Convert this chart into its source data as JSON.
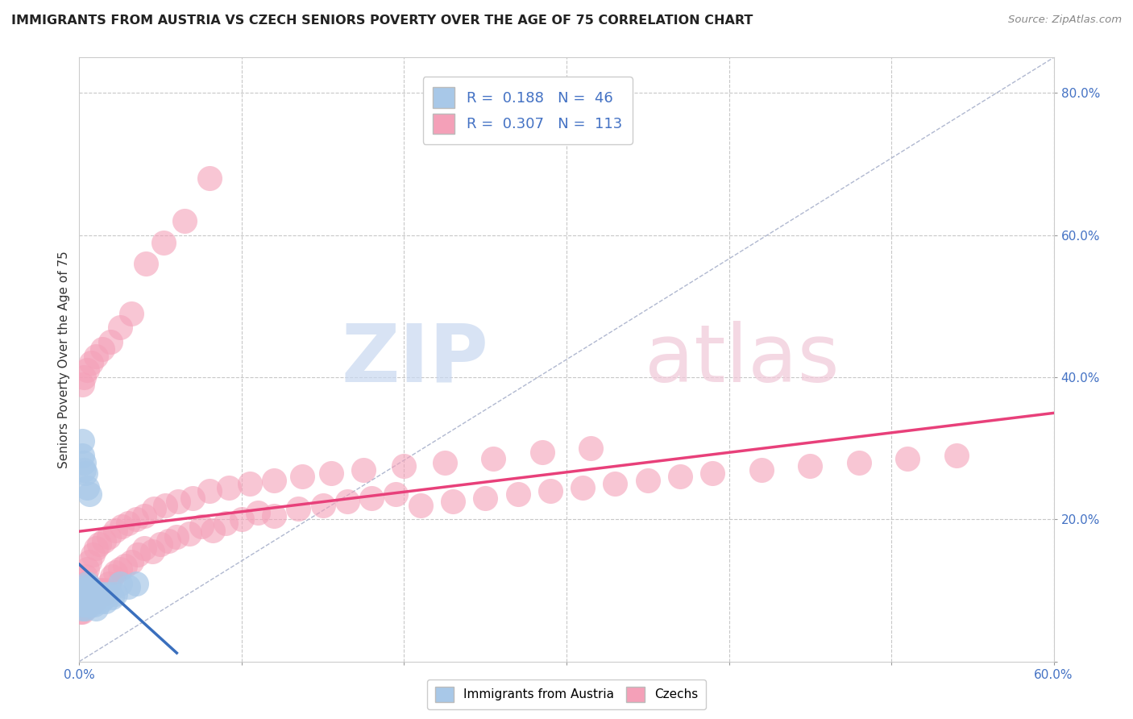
{
  "title": "IMMIGRANTS FROM AUSTRIA VS CZECH SENIORS POVERTY OVER THE AGE OF 75 CORRELATION CHART",
  "source": "Source: ZipAtlas.com",
  "ylabel": "Seniors Poverty Over the Age of 75",
  "xlim": [
    0.0,
    0.6
  ],
  "ylim": [
    0.0,
    0.85
  ],
  "austria_R": 0.188,
  "austria_N": 46,
  "czech_R": 0.307,
  "czech_N": 113,
  "austria_color": "#a8c8e8",
  "czech_color": "#f4a0b8",
  "austria_line_color": "#3a6fbd",
  "czech_line_color": "#e8407a",
  "bg_color": "#ffffff",
  "grid_color": "#c8c8c8",
  "legend_labels": [
    "Immigrants from Austria",
    "Czechs"
  ],
  "austria_x": [
    0.001,
    0.002,
    0.002,
    0.002,
    0.003,
    0.003,
    0.003,
    0.004,
    0.004,
    0.004,
    0.004,
    0.005,
    0.005,
    0.005,
    0.005,
    0.006,
    0.006,
    0.006,
    0.007,
    0.007,
    0.007,
    0.008,
    0.008,
    0.009,
    0.009,
    0.01,
    0.01,
    0.011,
    0.012,
    0.013,
    0.014,
    0.015,
    0.016,
    0.018,
    0.02,
    0.022,
    0.025,
    0.03,
    0.035,
    0.002,
    0.002,
    0.003,
    0.003,
    0.004,
    0.005,
    0.006
  ],
  "austria_y": [
    0.095,
    0.085,
    0.08,
    0.075,
    0.1,
    0.09,
    0.08,
    0.105,
    0.095,
    0.085,
    0.075,
    0.11,
    0.1,
    0.09,
    0.08,
    0.105,
    0.095,
    0.085,
    0.1,
    0.09,
    0.08,
    0.095,
    0.085,
    0.09,
    0.08,
    0.085,
    0.075,
    0.095,
    0.09,
    0.085,
    0.095,
    0.09,
    0.085,
    0.095,
    0.09,
    0.095,
    0.11,
    0.105,
    0.11,
    0.31,
    0.29,
    0.28,
    0.27,
    0.265,
    0.245,
    0.235
  ],
  "czech_x": [
    0.001,
    0.001,
    0.002,
    0.002,
    0.002,
    0.003,
    0.003,
    0.003,
    0.004,
    0.004,
    0.004,
    0.005,
    0.005,
    0.005,
    0.006,
    0.006,
    0.006,
    0.007,
    0.007,
    0.008,
    0.008,
    0.009,
    0.009,
    0.01,
    0.01,
    0.011,
    0.012,
    0.013,
    0.014,
    0.015,
    0.016,
    0.018,
    0.02,
    0.022,
    0.025,
    0.028,
    0.032,
    0.036,
    0.04,
    0.045,
    0.05,
    0.055,
    0.06,
    0.068,
    0.075,
    0.082,
    0.09,
    0.1,
    0.11,
    0.12,
    0.135,
    0.15,
    0.165,
    0.18,
    0.195,
    0.21,
    0.23,
    0.25,
    0.27,
    0.29,
    0.31,
    0.33,
    0.35,
    0.37,
    0.39,
    0.42,
    0.45,
    0.48,
    0.51,
    0.54,
    0.003,
    0.004,
    0.005,
    0.006,
    0.008,
    0.01,
    0.012,
    0.015,
    0.018,
    0.022,
    0.026,
    0.03,
    0.035,
    0.04,
    0.046,
    0.053,
    0.061,
    0.07,
    0.08,
    0.092,
    0.105,
    0.12,
    0.137,
    0.155,
    0.175,
    0.2,
    0.225,
    0.255,
    0.285,
    0.315,
    0.002,
    0.003,
    0.005,
    0.007,
    0.01,
    0.014,
    0.019,
    0.025,
    0.032,
    0.041,
    0.052,
    0.065,
    0.08
  ],
  "czech_y": [
    0.08,
    0.07,
    0.09,
    0.08,
    0.07,
    0.095,
    0.085,
    0.075,
    0.1,
    0.09,
    0.08,
    0.105,
    0.095,
    0.085,
    0.1,
    0.09,
    0.08,
    0.095,
    0.085,
    0.1,
    0.09,
    0.095,
    0.085,
    0.1,
    0.09,
    0.095,
    0.1,
    0.095,
    0.1,
    0.095,
    0.1,
    0.11,
    0.12,
    0.125,
    0.13,
    0.135,
    0.14,
    0.15,
    0.16,
    0.155,
    0.165,
    0.17,
    0.175,
    0.18,
    0.19,
    0.185,
    0.195,
    0.2,
    0.21,
    0.205,
    0.215,
    0.22,
    0.225,
    0.23,
    0.235,
    0.22,
    0.225,
    0.23,
    0.235,
    0.24,
    0.245,
    0.25,
    0.255,
    0.26,
    0.265,
    0.27,
    0.275,
    0.28,
    0.285,
    0.29,
    0.11,
    0.12,
    0.13,
    0.14,
    0.15,
    0.16,
    0.165,
    0.17,
    0.175,
    0.185,
    0.19,
    0.195,
    0.2,
    0.205,
    0.215,
    0.22,
    0.225,
    0.23,
    0.24,
    0.245,
    0.25,
    0.255,
    0.26,
    0.265,
    0.27,
    0.275,
    0.28,
    0.285,
    0.295,
    0.3,
    0.39,
    0.4,
    0.41,
    0.42,
    0.43,
    0.44,
    0.45,
    0.47,
    0.49,
    0.56,
    0.59,
    0.62,
    0.68
  ]
}
